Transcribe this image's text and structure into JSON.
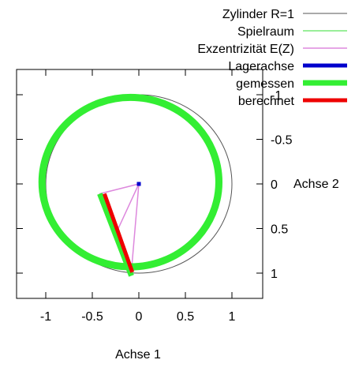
{
  "chart_data": {
    "type": "line",
    "xlabel": "Achse 1",
    "ylabel": "Achse 2",
    "xlim": [
      -1.3,
      1.3
    ],
    "ylim": [
      1.25,
      -1.25
    ],
    "xticks": [
      {
        "value": -1,
        "label": "-1"
      },
      {
        "value": -0.5,
        "label": "-0.5"
      },
      {
        "value": 0,
        "label": "0"
      },
      {
        "value": 0.5,
        "label": "0.5"
      },
      {
        "value": 1,
        "label": "1"
      }
    ],
    "yticks": [
      {
        "value": -1,
        "label": "-1"
      },
      {
        "value": -0.5,
        "label": "-0.5"
      },
      {
        "value": 0,
        "label": "0"
      },
      {
        "value": 0.5,
        "label": "0.5"
      },
      {
        "value": 1,
        "label": "1"
      }
    ],
    "legend_position": "top-right",
    "series": [
      {
        "name": "Zylinder R=1",
        "kind": "circle",
        "center": [
          0,
          0
        ],
        "radius": 1,
        "color": "#555555",
        "width": 1
      },
      {
        "name": "Spielraum",
        "kind": "ring",
        "center": [
          -0.09,
          -0.02
        ],
        "radii": [
          0.92,
          0.98
        ],
        "color": "#33dd33",
        "width": 1
      },
      {
        "name": "Exzentrizität E(Z)",
        "kind": "polyline",
        "color": "#dd88dd",
        "width": 1.5,
        "points": [
          [
            0,
            0
          ],
          [
            -0.42,
            0.11
          ],
          [
            -0.23,
            0.52
          ],
          [
            0,
            0
          ],
          [
            -0.08,
            0.98
          ],
          [
            0,
            0
          ]
        ]
      },
      {
        "name": "Lagerachse",
        "kind": "marker",
        "point": [
          0,
          0
        ],
        "color": "#0000cc",
        "width": 5
      },
      {
        "name": "gemessen",
        "kind": "ring-and-line",
        "center": [
          -0.09,
          -0.02
        ],
        "radii": [
          0.92,
          0.98
        ],
        "line": [
          [
            -0.42,
            0.11
          ],
          [
            -0.08,
            1.03
          ]
        ],
        "color": "#33ee33",
        "width": 7
      },
      {
        "name": "berechnet",
        "kind": "polyline",
        "color": "#ee0000",
        "width": 5,
        "points": [
          [
            -0.37,
            0.11
          ],
          [
            -0.23,
            0.52
          ],
          [
            -0.07,
            0.99
          ]
        ]
      }
    ]
  }
}
